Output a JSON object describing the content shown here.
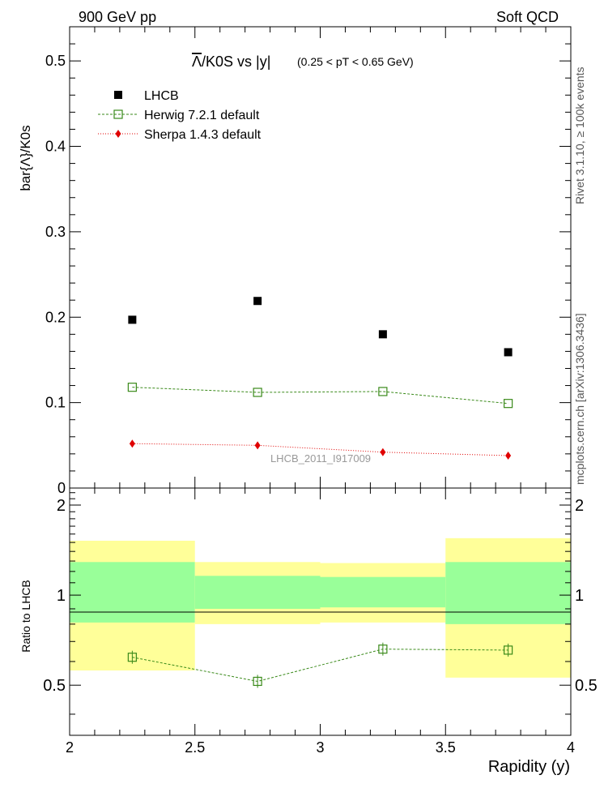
{
  "header": {
    "left": "900 GeV pp",
    "right": "Soft QCD"
  },
  "side_labels": {
    "rivet": "Rivet 3.1.10, ≥ 100k events",
    "mcplots": "mcplots.cern.ch [arXiv:1306.3436]"
  },
  "chart_data": [
    {
      "type": "scatter",
      "panel": "main",
      "title": "Λ/K0S vs |y|",
      "title_bar": "Λ",
      "title_rest": "/K0S vs |y|",
      "subtitle": "(0.25 < pT < 0.65 GeV)",
      "ylabel": "bar{Λ}/K0s",
      "xlim": [
        2,
        4
      ],
      "ylim": [
        0,
        0.54
      ],
      "yticks": [
        "0",
        "0.1",
        "0.2",
        "0.3",
        "0.4",
        "0.5"
      ],
      "watermark": "LHCB_2011_I917009",
      "legend_position": "top-left",
      "series": [
        {
          "name": "LHCB",
          "color": "#000000",
          "marker": "filled-square",
          "line": "none",
          "x": [
            2.25,
            2.75,
            3.25,
            3.75
          ],
          "y": [
            0.197,
            0.219,
            0.18,
            0.159
          ]
        },
        {
          "name": "Herwig 7.2.1 default",
          "color": "#3a8a1a",
          "marker": "open-square",
          "line": "dashed",
          "x": [
            2.25,
            2.75,
            3.25,
            3.75
          ],
          "y": [
            0.118,
            0.112,
            0.113,
            0.099
          ]
        },
        {
          "name": "Sherpa 1.4.3 default",
          "color": "#e00000",
          "marker": "filled-diamond",
          "line": "dotted",
          "x": [
            2.25,
            2.75,
            3.25,
            3.75
          ],
          "y": [
            0.052,
            0.05,
            0.042,
            0.038
          ]
        }
      ]
    },
    {
      "type": "scatter",
      "panel": "ratio",
      "ylabel": "Ratio to LHCB",
      "xlabel": "Rapidity (y)",
      "xlim": [
        2,
        4
      ],
      "ylim": [
        0.34,
        2.28
      ],
      "xticks": [
        "2",
        "2.5",
        "3",
        "3.5",
        "4"
      ],
      "yticks": [
        "0.5",
        "1",
        "2"
      ],
      "bands": [
        {
          "x0": 2.0,
          "x1": 2.5,
          "inner": [
            0.81,
            1.29
          ],
          "outer": [
            0.56,
            1.52
          ]
        },
        {
          "x0": 2.5,
          "x1": 3.0,
          "inner": [
            0.9,
            1.16
          ],
          "outer": [
            0.8,
            1.29
          ]
        },
        {
          "x0": 3.0,
          "x1": 3.5,
          "inner": [
            0.91,
            1.15
          ],
          "outer": [
            0.81,
            1.28
          ]
        },
        {
          "x0": 3.5,
          "x1": 4.0,
          "inner": [
            0.8,
            1.29
          ],
          "outer": [
            0.53,
            1.55
          ]
        }
      ],
      "band_colors": {
        "inner": "#99ff99",
        "outer": "#ffff99"
      },
      "series": [
        {
          "name": "Herwig 7.2.1 default",
          "color": "#3a8a1a",
          "marker": "open-square",
          "line": "dashed",
          "x": [
            2.25,
            2.75,
            3.25,
            3.75
          ],
          "y": [
            0.62,
            0.515,
            0.66,
            0.655
          ]
        }
      ]
    }
  ]
}
